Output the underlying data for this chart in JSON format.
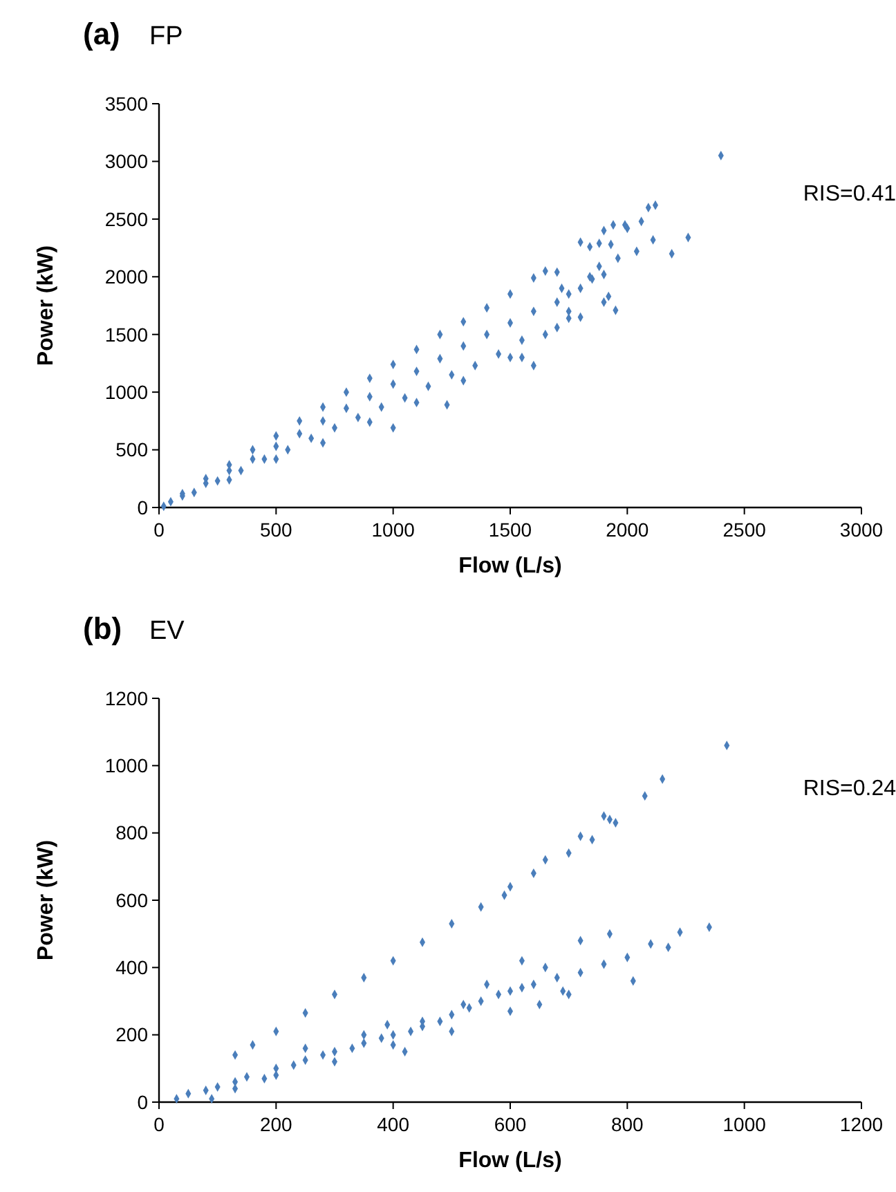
{
  "chart_data": [
    {
      "type": "scatter",
      "title": "(a)",
      "subtitle": "FP",
      "xlabel": "Flow (L/s)",
      "ylabel": "Power (kW)",
      "annotations": [
        "RIS=0.41"
      ],
      "xlim": [
        0,
        3000
      ],
      "xticks": [
        0,
        500,
        1000,
        1500,
        2000,
        2500,
        3000
      ],
      "ylim": [
        0,
        3500
      ],
      "yticks": [
        0,
        500,
        1000,
        1500,
        2000,
        2500,
        3000,
        3500
      ],
      "grid": false,
      "marker": "diamond",
      "series": [
        {
          "color": "#4a7ebb",
          "x": [
            20,
            50,
            100,
            200,
            300,
            400,
            500,
            600,
            700,
            800,
            900,
            1000,
            1100,
            1200,
            1300,
            1400,
            1500,
            1600,
            1650,
            1700,
            100,
            200,
            300,
            400,
            500,
            600,
            700,
            800,
            900,
            1000,
            1100,
            1200,
            1300,
            1400,
            1500,
            1600,
            1700,
            1750,
            150,
            250,
            350,
            450,
            550,
            650,
            750,
            850,
            950,
            1050,
            1150,
            1250,
            1350,
            1450,
            1550,
            1650,
            1700,
            1750,
            300,
            500,
            700,
            900,
            1100,
            1300,
            1500,
            1750,
            1800,
            1850,
            1900,
            1720,
            2400,
            2120,
            2090,
            2060,
            1990,
            2000,
            1940,
            1900,
            1800,
            1840,
            1880,
            2260,
            2190,
            2110,
            1960,
            2040,
            1930,
            1950,
            1920,
            1900,
            1840,
            1880,
            1800,
            1600,
            1550,
            1230,
            1000
          ],
          "values": [
            10,
            50,
            120,
            250,
            370,
            500,
            620,
            750,
            870,
            1000,
            1120,
            1240,
            1370,
            1500,
            1610,
            1730,
            1850,
            1990,
            2050,
            2040,
            100,
            210,
            320,
            420,
            530,
            640,
            750,
            860,
            960,
            1070,
            1180,
            1290,
            1400,
            1500,
            1600,
            1700,
            1780,
            1850,
            130,
            230,
            320,
            420,
            500,
            600,
            690,
            780,
            870,
            950,
            1050,
            1150,
            1230,
            1330,
            1450,
            1500,
            1560,
            1640,
            240,
            420,
            560,
            740,
            910,
            1100,
            1300,
            1700,
            1900,
            1980,
            2020,
            1900,
            3050,
            2620,
            2600,
            2480,
            2450,
            2420,
            2450,
            2400,
            2300,
            2260,
            2290,
            2340,
            2200,
            2320,
            2160,
            2220,
            2280,
            1710,
            1830,
            1780,
            2000,
            2090,
            1650,
            1230,
            1300,
            890,
            690
          ]
        }
      ]
    },
    {
      "type": "scatter",
      "title": "(b)",
      "subtitle": "EV",
      "xlabel": "Flow (L/s)",
      "ylabel": "Power (kW)",
      "annotations": [
        "RIS=0.24"
      ],
      "xlim": [
        0,
        1200
      ],
      "xticks": [
        0,
        200,
        400,
        600,
        800,
        1000,
        1200
      ],
      "ylim": [
        0,
        1200
      ],
      "yticks": [
        0,
        200,
        400,
        600,
        800,
        1000,
        1200
      ],
      "grid": false,
      "marker": "diamond",
      "series": [
        {
          "color": "#4a7ebb",
          "x": [
            160,
            200,
            250,
            300,
            350,
            400,
            450,
            500,
            550,
            590,
            600,
            640,
            660,
            700,
            720,
            760,
            770,
            780,
            740,
            830,
            860,
            970,
            130,
            30,
            50,
            80,
            100,
            130,
            150,
            200,
            250,
            300,
            350,
            400,
            450,
            500,
            550,
            600,
            640,
            680,
            720,
            760,
            800,
            840,
            890,
            940,
            870,
            810,
            700,
            600,
            500,
            400,
            300,
            200,
            420,
            450,
            520,
            560,
            620,
            660,
            720,
            770,
            390,
            350,
            250,
            90,
            130,
            180,
            230,
            280,
            330,
            380,
            430,
            480,
            530,
            580,
            620,
            650,
            690
          ],
          "values": [
            170,
            210,
            265,
            320,
            370,
            420,
            475,
            530,
            580,
            615,
            640,
            680,
            720,
            740,
            790,
            850,
            840,
            830,
            780,
            910,
            960,
            1060,
            140,
            10,
            25,
            35,
            45,
            60,
            75,
            100,
            125,
            150,
            175,
            200,
            225,
            260,
            300,
            330,
            350,
            370,
            385,
            410,
            430,
            470,
            505,
            520,
            460,
            360,
            320,
            270,
            210,
            170,
            120,
            80,
            150,
            240,
            290,
            350,
            420,
            400,
            480,
            500,
            230,
            200,
            160,
            10,
            40,
            70,
            110,
            140,
            160,
            190,
            210,
            240,
            280,
            320,
            340,
            290,
            330
          ]
        }
      ]
    }
  ]
}
